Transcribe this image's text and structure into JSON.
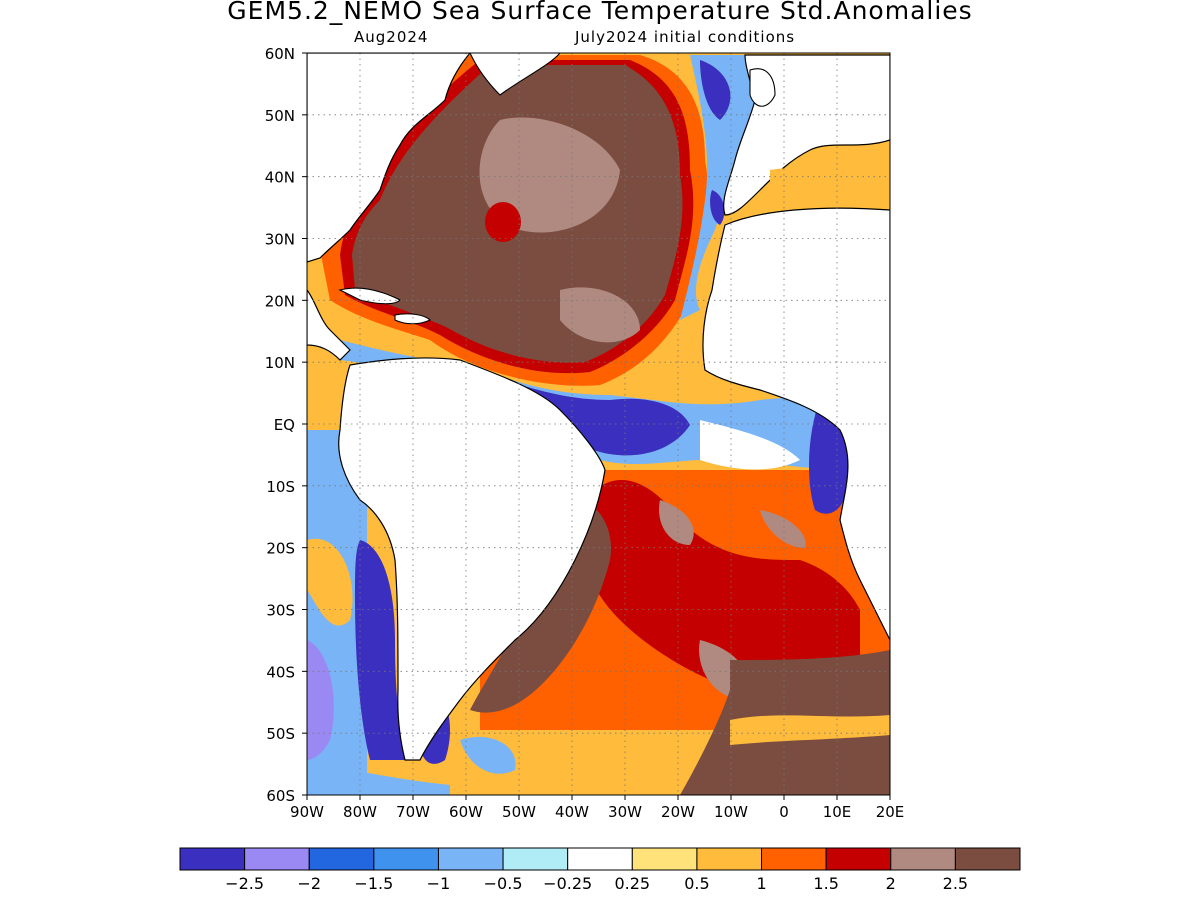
{
  "header": {
    "title": "GEM5.2_NEMO Sea Surface Temperature Std.Anomalies",
    "subtitle_left": "Aug2024",
    "subtitle_right": "July2024 initial conditions"
  },
  "axes": {
    "lat_labels": [
      "60N",
      "50N",
      "40N",
      "30N",
      "20N",
      "10N",
      "EQ",
      "10S",
      "20S",
      "30S",
      "40S",
      "50S",
      "60S"
    ],
    "lat_values": [
      60,
      50,
      40,
      30,
      20,
      10,
      0,
      -10,
      -20,
      -30,
      -40,
      -50,
      -60
    ],
    "lon_labels": [
      "90W",
      "80W",
      "70W",
      "60W",
      "50W",
      "40W",
      "30W",
      "20W",
      "10W",
      "0",
      "10E",
      "20E"
    ],
    "lon_values": [
      -90,
      -80,
      -70,
      -60,
      -50,
      -40,
      -30,
      -20,
      -10,
      0,
      10,
      20
    ],
    "lat_range": [
      -60,
      60
    ],
    "lon_range": [
      -90,
      20
    ],
    "grid": "dotted"
  },
  "colorbar": {
    "colors": [
      "#3b2fbf",
      "#9b89f3",
      "#2266e0",
      "#3f93ee",
      "#79b5f6",
      "#b0ecf6",
      "#ffffff",
      "#ffe27a",
      "#ffbb3c",
      "#ff6000",
      "#c40000",
      "#b08a80",
      "#7a4d40"
    ],
    "labels": [
      "-2.5",
      "-2",
      "-1.5",
      "-1",
      "-0.5",
      "-0.25",
      "0.25",
      "0.5",
      "1",
      "1.5",
      "2",
      "2.5"
    ]
  },
  "regions": [
    {
      "name": "north-atlantic-warm",
      "level": 12
    },
    {
      "name": "south-atlantic-warm",
      "level": 12
    },
    {
      "name": "equatorial-cold",
      "level": 0
    },
    {
      "name": "patagonia-cold",
      "level": 0
    },
    {
      "name": "southern-ocean-warm",
      "level": 12
    }
  ]
}
